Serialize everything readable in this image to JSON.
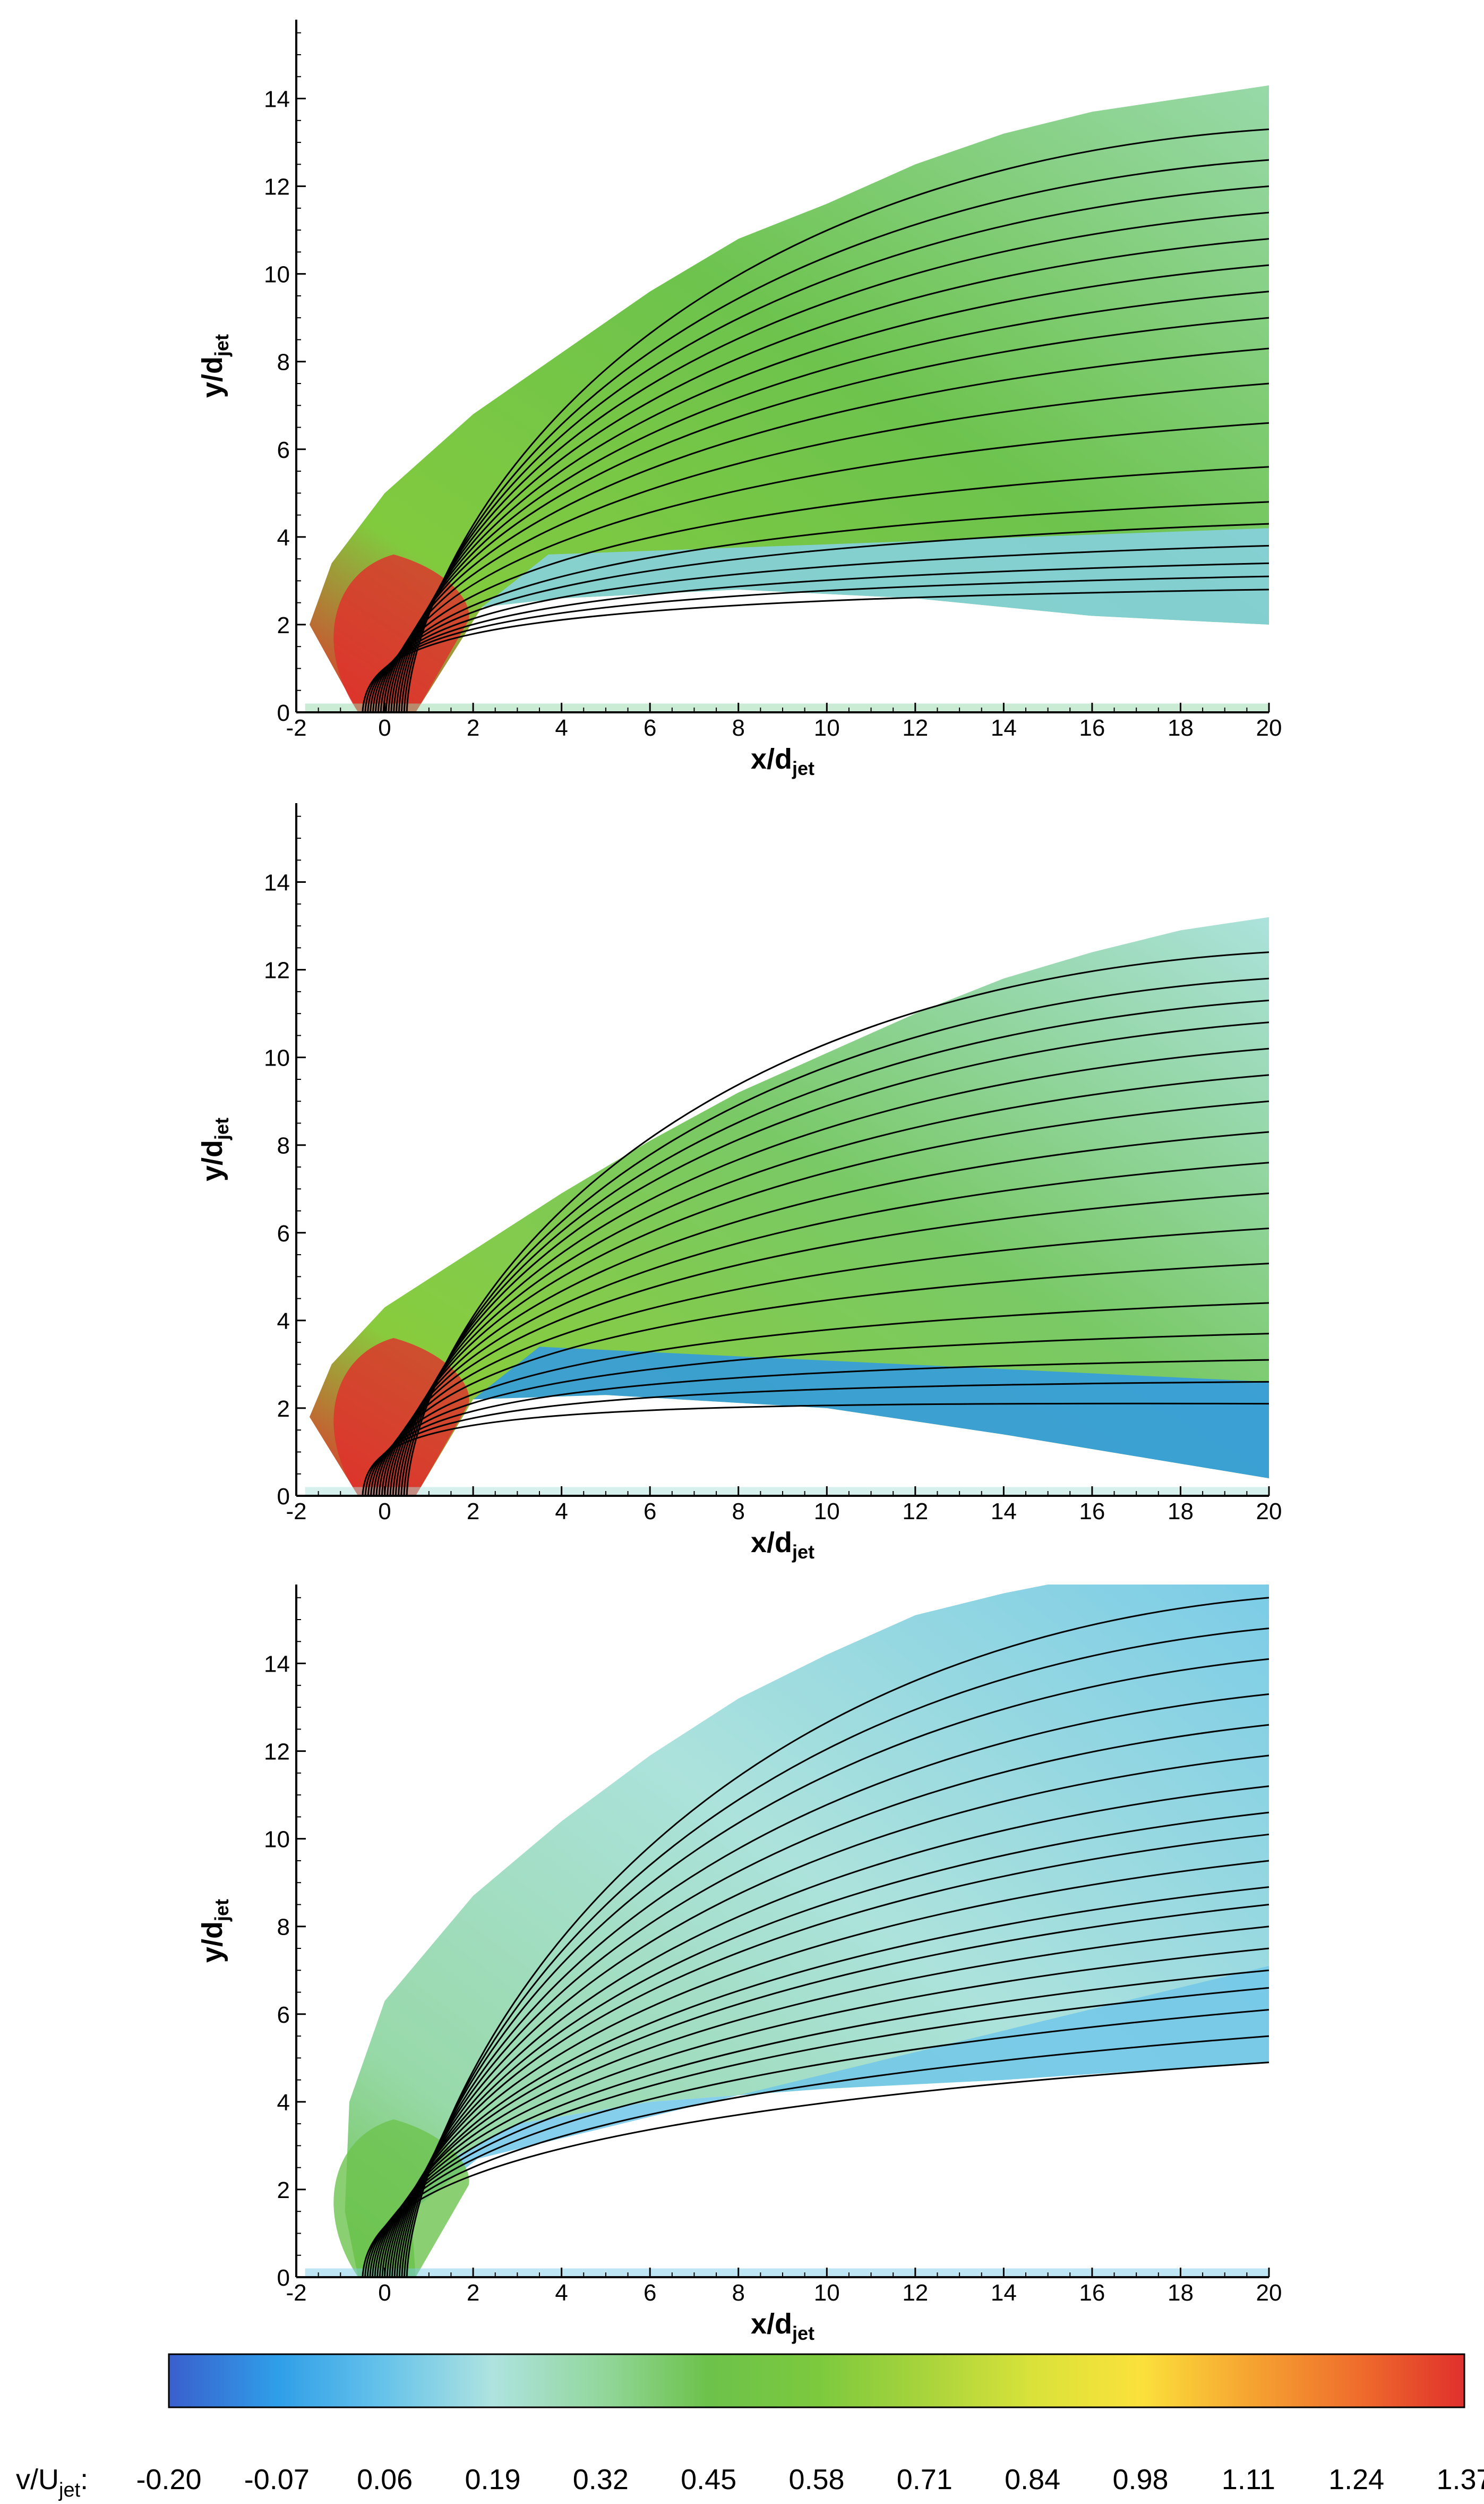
{
  "chart_data": [
    {
      "type": "heatmap",
      "panel": "top",
      "xlabel": "x/d",
      "xlabel_sub": "jet",
      "ylabel": "y/d",
      "ylabel_sub": "jet",
      "xlim": [
        -2,
        20
      ],
      "ylim": [
        0,
        15.8
      ],
      "xticks": [
        -2,
        0,
        2,
        4,
        6,
        8,
        10,
        12,
        14,
        16,
        18,
        20
      ],
      "yticks": [
        0,
        2,
        4,
        6,
        8,
        10,
        12,
        14
      ],
      "upper_boundary": [
        [
          -1.7,
          2.0
        ],
        [
          -1.2,
          3.4
        ],
        [
          0.0,
          5.0
        ],
        [
          2.0,
          6.8
        ],
        [
          4.0,
          8.2
        ],
        [
          6.0,
          9.6
        ],
        [
          8.0,
          10.8
        ],
        [
          10.0,
          11.6
        ],
        [
          12.0,
          12.5
        ],
        [
          14.0,
          13.2
        ],
        [
          16.0,
          13.7
        ],
        [
          18.0,
          14.0
        ],
        [
          20.0,
          14.3
        ]
      ],
      "lower_boundary": [
        [
          2.2,
          2.4
        ],
        [
          4.0,
          2.6
        ],
        [
          8.0,
          2.8
        ],
        [
          12.0,
          2.6
        ],
        [
          16.0,
          2.2
        ],
        [
          20.0,
          2.0
        ]
      ],
      "streamline_end_y": [
        2.8,
        3.1,
        3.4,
        3.8,
        4.3,
        4.8,
        5.6,
        6.6,
        7.5,
        8.3,
        9.0,
        9.6,
        10.2,
        10.8,
        11.4,
        12.0,
        12.6,
        13.3
      ],
      "core_value": 1.37,
      "outer_value": 0.6,
      "far_value": 0.3,
      "lower_value": 0.12
    },
    {
      "type": "heatmap",
      "panel": "middle",
      "xlabel": "x/d",
      "xlabel_sub": "jet",
      "ylabel": "y/d",
      "ylabel_sub": "jet",
      "xlim": [
        -2,
        20
      ],
      "ylim": [
        0,
        15.8
      ],
      "xticks": [
        -2,
        0,
        2,
        4,
        6,
        8,
        10,
        12,
        14,
        16,
        18,
        20
      ],
      "yticks": [
        0,
        2,
        4,
        6,
        8,
        10,
        12,
        14
      ],
      "upper_boundary": [
        [
          -1.7,
          1.8
        ],
        [
          -1.2,
          3.0
        ],
        [
          0.0,
          4.3
        ],
        [
          2.0,
          5.6
        ],
        [
          4.0,
          6.9
        ],
        [
          6.0,
          8.1
        ],
        [
          8.0,
          9.2
        ],
        [
          10.0,
          10.1
        ],
        [
          12.0,
          11.0
        ],
        [
          14.0,
          11.8
        ],
        [
          16.0,
          12.4
        ],
        [
          18.0,
          12.9
        ],
        [
          20.0,
          13.2
        ]
      ],
      "lower_boundary": [
        [
          2.0,
          2.2
        ],
        [
          5.0,
          2.3
        ],
        [
          10.0,
          2.0
        ],
        [
          14.0,
          1.4
        ],
        [
          17.0,
          0.9
        ],
        [
          20.0,
          0.4
        ]
      ],
      "streamline_end_y": [
        2.1,
        2.6,
        3.1,
        3.7,
        4.4,
        5.3,
        6.1,
        6.9,
        7.6,
        8.3,
        9.0,
        9.6,
        10.2,
        10.8,
        11.3,
        11.8,
        12.4
      ],
      "core_value": 1.37,
      "outer_value": 0.62,
      "far_value": 0.2,
      "lower_value": -0.08
    },
    {
      "type": "heatmap",
      "panel": "bottom",
      "xlabel": "x/d",
      "xlabel_sub": "jet",
      "ylabel": "y/d",
      "ylabel_sub": "jet",
      "xlim": [
        -2,
        20
      ],
      "ylim": [
        0,
        15.8
      ],
      "xticks": [
        -2,
        0,
        2,
        4,
        6,
        8,
        10,
        12,
        14,
        16,
        18,
        20
      ],
      "yticks": [
        0,
        2,
        4,
        6,
        8,
        10,
        12,
        14
      ],
      "upper_boundary": [
        [
          -0.9,
          1.5
        ],
        [
          -0.8,
          4.0
        ],
        [
          0.0,
          6.3
        ],
        [
          2.0,
          8.7
        ],
        [
          4.0,
          10.4
        ],
        [
          6.0,
          11.9
        ],
        [
          8.0,
          13.2
        ],
        [
          10.0,
          14.2
        ],
        [
          12.0,
          15.1
        ],
        [
          14.0,
          15.6
        ],
        [
          15.0,
          15.8
        ],
        [
          20.0,
          15.8
        ]
      ],
      "lower_boundary": [
        [
          0.6,
          1.5
        ],
        [
          1.3,
          2.6
        ],
        [
          3.0,
          3.5
        ],
        [
          6.0,
          4.0
        ],
        [
          10.0,
          4.3
        ],
        [
          14.0,
          4.5
        ],
        [
          20.0,
          4.9
        ]
      ],
      "streamline_end_y": [
        4.9,
        5.5,
        6.1,
        6.6,
        7.0,
        7.5,
        8.0,
        8.5,
        8.9,
        9.5,
        10.1,
        10.6,
        11.2,
        11.9,
        12.6,
        13.3,
        14.1,
        14.8,
        15.5
      ],
      "core_value": 0.45,
      "outer_value": 0.3,
      "far_value": 0.1,
      "lower_value": 0.08
    }
  ],
  "colorbar": {
    "label_main": "v/U",
    "label_sub": "jet",
    "label_suffix": ":",
    "ticks": [
      "-0.20",
      "-0.07",
      "0.06",
      "0.19",
      "0.32",
      "0.45",
      "0.58",
      "0.71",
      "0.84",
      "0.98",
      "1.11",
      "1.24",
      "1.37"
    ],
    "min": -0.2,
    "max": 1.37,
    "stops": [
      "#3a5fcd",
      "#2f9ee8",
      "#67c3ea",
      "#aee3e0",
      "#93d79d",
      "#6cc24a",
      "#7cc93e",
      "#a8d43c",
      "#d9e23a",
      "#fbe13b",
      "#f6a531",
      "#ef6e2c",
      "#e0302c"
    ]
  }
}
